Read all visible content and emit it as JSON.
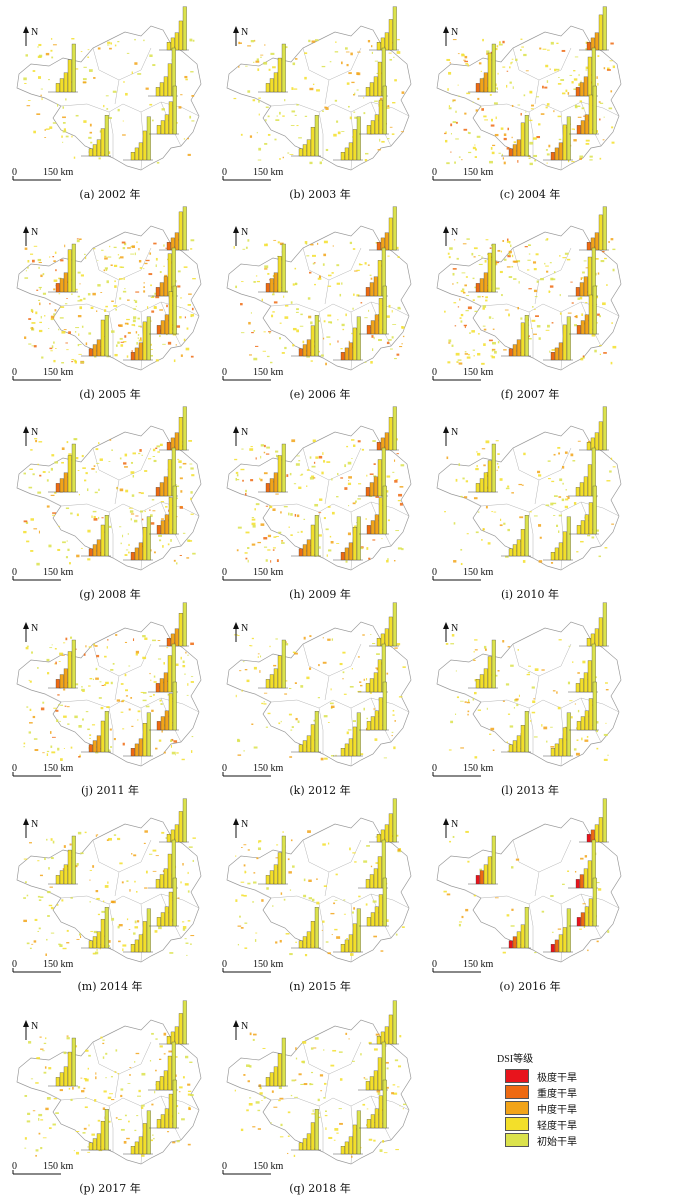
{
  "colors": {
    "extreme": "#e8141c",
    "severe": "#ee6a12",
    "moderate": "#f2a419",
    "light": "#f3df2a",
    "initial": "#dbe24c"
  },
  "map_labels": {
    "north": "N",
    "scale_zero": "0",
    "scale_distance": "150 km"
  },
  "panels": [
    {
      "caption": "(a) 2002 年",
      "intensity": 0.35
    },
    {
      "caption": "(b) 2003 年",
      "intensity": 0.45
    },
    {
      "caption": "(c) 2004 年",
      "intensity": 0.75
    },
    {
      "caption": "(d) 2005 年",
      "intensity": 0.95
    },
    {
      "caption": "(e) 2006 年",
      "intensity": 0.55
    },
    {
      "caption": "(f) 2007 年",
      "intensity": 0.75
    },
    {
      "caption": "(g) 2008 年",
      "intensity": 0.6
    },
    {
      "caption": "(h) 2009 年",
      "intensity": 0.6
    },
    {
      "caption": "(i) 2010 年",
      "intensity": 0.3
    },
    {
      "caption": "(j) 2011 年",
      "intensity": 0.6
    },
    {
      "caption": "(k) 2012 年",
      "intensity": 0.35
    },
    {
      "caption": "(l) 2013 年",
      "intensity": 0.3
    },
    {
      "caption": "(m) 2014 年",
      "intensity": 0.45
    },
    {
      "caption": "(n) 2015 年",
      "intensity": 0.3
    },
    {
      "caption": "(o) 2016 年",
      "intensity": 0.05
    },
    {
      "caption": "(p) 2017 年",
      "intensity": 0.45
    },
    {
      "caption": "(q) 2018 年",
      "intensity": 0.35
    }
  ],
  "legend": {
    "title": "DSI等级",
    "items": [
      {
        "label": "极度干旱",
        "color": "#e8141c"
      },
      {
        "label": "重度干旱",
        "color": "#ee6a12"
      },
      {
        "label": "中度干旱",
        "color": "#f2a419"
      },
      {
        "label": "轻度干旱",
        "color": "#f3df2a"
      },
      {
        "label": "初始干旱",
        "color": "#dbe24c"
      }
    ]
  }
}
